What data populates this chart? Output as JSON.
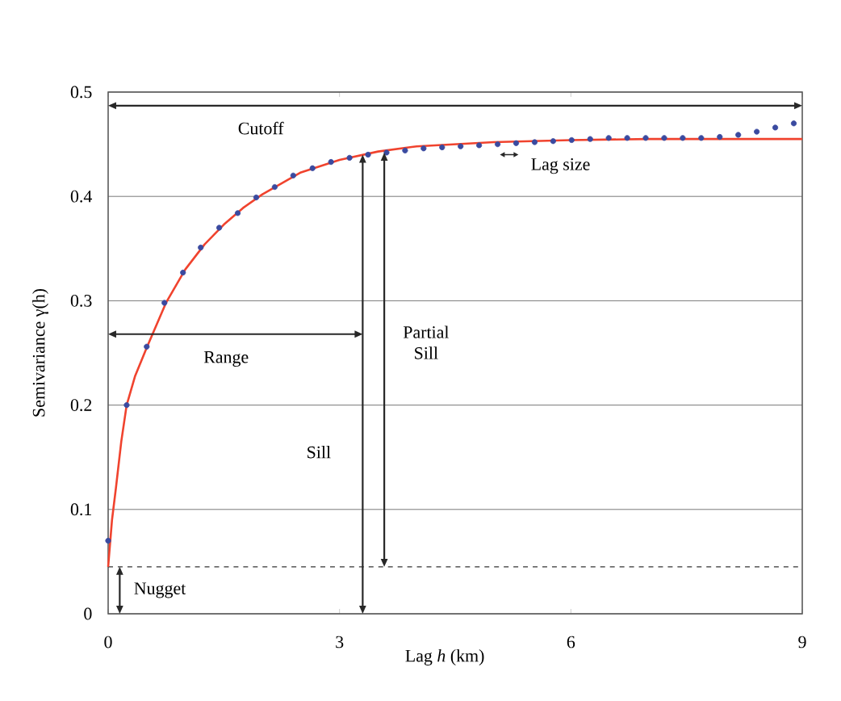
{
  "chart_data": {
    "type": "scatter",
    "xlabel": "Lag *h* (km)",
    "ylabel": "Semivariance  γ(h)",
    "xlim": [
      0,
      9
    ],
    "ylim": [
      0,
      0.5
    ],
    "xticks": [
      0,
      3,
      6,
      9
    ],
    "yticks": [
      0,
      0.1,
      0.2,
      0.3,
      0.4,
      0.5
    ],
    "grid": "y",
    "series": [
      {
        "color": "#3a4aa0",
        "marker": "circle",
        "x": [
          0,
          0.24,
          0.5,
          0.73,
          0.97,
          1.2,
          1.44,
          1.68,
          1.92,
          2.16,
          2.4,
          2.65,
          2.89,
          3.13,
          3.37,
          3.61,
          3.85,
          4.09,
          4.33,
          4.57,
          4.81,
          5.05,
          5.29,
          5.53,
          5.77,
          6.01,
          6.25,
          6.49,
          6.73,
          6.97,
          7.21,
          7.45,
          7.69,
          7.93,
          8.17,
          8.41,
          8.65,
          8.89
        ],
        "values": [
          0.07,
          0.2,
          0.256,
          0.298,
          0.327,
          0.351,
          0.37,
          0.384,
          0.399,
          0.409,
          0.42,
          0.427,
          0.433,
          0.437,
          0.44,
          0.442,
          0.444,
          0.446,
          0.447,
          0.448,
          0.449,
          0.45,
          0.451,
          0.452,
          0.453,
          0.454,
          0.455,
          0.456,
          0.456,
          0.456,
          0.456,
          0.456,
          0.456,
          0.457,
          0.459,
          0.462,
          0.466,
          0.47
        ]
      },
      {
        "type": "line",
        "color": "#f0432e",
        "marker": "none",
        "line_style": "solid",
        "x": [
          0,
          0.05,
          0.1,
          0.17,
          0.24,
          0.35,
          0.5,
          0.75,
          1,
          1.25,
          1.5,
          1.75,
          2,
          2.5,
          3,
          3.5,
          4,
          5,
          6,
          7,
          8,
          9
        ],
        "values": [
          0.045,
          0.09,
          0.12,
          0.165,
          0.2,
          0.228,
          0.255,
          0.298,
          0.33,
          0.354,
          0.373,
          0.389,
          0.402,
          0.423,
          0.435,
          0.443,
          0.448,
          0.452,
          0.454,
          0.455,
          0.455,
          0.455
        ]
      }
    ],
    "ref_lines": [
      {
        "axis": "y",
        "value": 0.045,
        "color": "#333333",
        "line_style": "dashed"
      }
    ],
    "annotations": [
      "Cutoff",
      "Lag size",
      "Range",
      "Sill",
      "Partial Sill",
      "Nugget"
    ]
  }
}
